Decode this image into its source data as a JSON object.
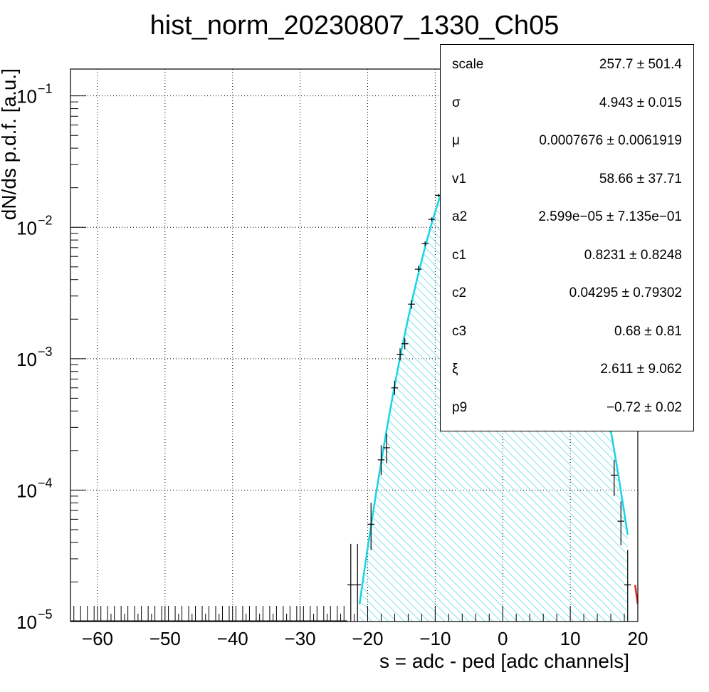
{
  "chart_data": {
    "type": "scatter",
    "title": "hist_norm_20230807_1330_Ch05",
    "xlabel": "s = adc - ped [adc channels]",
    "ylabel": "dN/ds p.d.f. [a.u.]",
    "xlim": [
      -64,
      20
    ],
    "ylim": [
      1e-05,
      0.16
    ],
    "y_scale": "log",
    "grid": true,
    "x_ticks": [
      -60,
      -50,
      -40,
      -30,
      -20,
      -10,
      0,
      10,
      20
    ],
    "x_tick_labels": [
      "−60",
      "−50",
      "−40",
      "−30",
      "−20",
      "−10",
      "0",
      "10",
      "20"
    ],
    "y_ticks": [
      1e-05,
      0.0001,
      0.001,
      0.01,
      0.1
    ],
    "y_tick_labels": [
      {
        "base": "10",
        "exp": "−5"
      },
      {
        "base": "10",
        "exp": "−4"
      },
      {
        "base": "10",
        "exp": "−3"
      },
      {
        "base": "10",
        "exp": "−2"
      },
      {
        "base": "10",
        "exp": "−1"
      }
    ],
    "histogram_points": [
      {
        "x": -22.5,
        "y": 1.9e-05,
        "y_low": 1e-05,
        "y_high": 3.9e-05
      },
      {
        "x": -21.5,
        "y": 1.9e-05,
        "y_low": 1e-05,
        "y_high": 3.9e-05
      },
      {
        "x": -19.5,
        "y": 5.5e-05,
        "y_low": 3.5e-05,
        "y_high": 8e-05
      },
      {
        "x": -18.0,
        "y": 0.00017,
        "y_low": 0.00013,
        "y_high": 0.00022
      },
      {
        "x": -17.2,
        "y": 0.00021,
        "y_low": 0.00016,
        "y_high": 0.00027
      },
      {
        "x": -16.0,
        "y": 0.0006,
        "y_low": 0.00053,
        "y_high": 0.00068
      },
      {
        "x": -15.2,
        "y": 0.00108,
        "y_low": 0.00097,
        "y_high": 0.0012
      },
      {
        "x": -14.5,
        "y": 0.0013,
        "y_low": 0.00118,
        "y_high": 0.00143
      },
      {
        "x": -13.5,
        "y": 0.0026,
        "y_low": 0.0024,
        "y_high": 0.0028
      },
      {
        "x": -12.5,
        "y": 0.0048,
        "y_low": 0.0046,
        "y_high": 0.0051
      },
      {
        "x": -11.5,
        "y": 0.0075,
        "y_low": 0.0072,
        "y_high": 0.0078
      },
      {
        "x": -10.5,
        "y": 0.0115,
        "y_low": 0.0111,
        "y_high": 0.0119
      },
      {
        "x": -9.5,
        "y": 0.0175,
        "y_low": 0.017,
        "y_high": 0.018
      },
      {
        "x": 16.5,
        "y": 0.00013,
        "y_low": 9e-05,
        "y_high": 0.00017
      },
      {
        "x": 17.5,
        "y": 5.8e-05,
        "y_low": 3.8e-05,
        "y_high": 8.2e-05
      },
      {
        "x": 18.5,
        "y": 1.9e-05,
        "y_low": 1e-05,
        "y_high": 3.5e-05
      }
    ],
    "floor_points_x": [
      -63.5,
      -62.5,
      -61.5,
      -60.5,
      -59.5,
      -58.5,
      -57.5,
      -56.5,
      -55.5,
      -54.5,
      -53.5,
      -52.5,
      -51.5,
      -50.5,
      -49.5,
      -48.5,
      -47.5,
      -46.5,
      -45.5,
      -44.5,
      -43.5,
      -42.5,
      -41.5,
      -40.5,
      -39.5,
      -38.5,
      -37.5,
      -36.5,
      -35.5,
      -34.5,
      -33.5,
      -32.5,
      -31.5,
      -30.5,
      -29.5,
      -28.5,
      -27.5,
      -26.5,
      -25.5,
      -24.5,
      -23.5
    ],
    "fit_model": {
      "amplitude": 0.08,
      "mean": -0.6,
      "sigma": 4.943,
      "x_min": -21.2,
      "x_max": 18.5
    },
    "fit_tail": {
      "x_min": 19.6,
      "x_max": 20.0
    },
    "fit_color": "#17d4e6",
    "fit_tail_color": "#e8201a",
    "hatch_color": "#7fe3ee",
    "stats": [
      {
        "name": "scale",
        "value": "257.7 ± 501.4"
      },
      {
        "name": "σ",
        "value": "4.943 ± 0.015"
      },
      {
        "name": "μ",
        "value": "0.0007676 ± 0.0061919"
      },
      {
        "name": "v1",
        "value": "58.66 ± 37.71"
      },
      {
        "name": "a2",
        "value": "2.599e−05 ± 7.135e−01"
      },
      {
        "name": "c1",
        "value": "0.8231 ± 0.8248"
      },
      {
        "name": "c2",
        "value": "0.04295 ± 0.79302"
      },
      {
        "name": "c3",
        "value": "0.68 ± 0.81"
      },
      {
        "name": "ξ",
        "value": "2.611 ± 9.062"
      },
      {
        "name": "p9",
        "value": "−0.72 ± 0.02"
      }
    ]
  }
}
